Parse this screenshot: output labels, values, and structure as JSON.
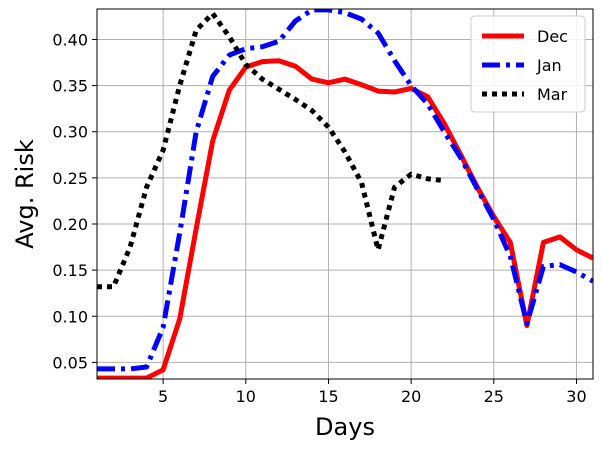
{
  "chart_data": {
    "type": "line",
    "title": "",
    "xlabel": "Days",
    "ylabel": "Avg. Risk",
    "xlim": [
      1,
      31
    ],
    "ylim": [
      0.032,
      0.433
    ],
    "xticks": [
      5,
      10,
      15,
      20,
      25,
      30
    ],
    "yticks": [
      0.05,
      0.1,
      0.15,
      0.2,
      0.25,
      0.3,
      0.35,
      0.4
    ],
    "xtick_labels": [
      "5",
      "10",
      "15",
      "20",
      "25",
      "30"
    ],
    "ytick_labels": [
      "0.05",
      "0.10",
      "0.15",
      "0.20",
      "0.25",
      "0.30",
      "0.35",
      "0.40"
    ],
    "grid": true,
    "legend_position": "top-right",
    "series": [
      {
        "name": "Dec",
        "color": "#ff0000",
        "style": "solid",
        "x": [
          1,
          2,
          3,
          4,
          5,
          6,
          7,
          8,
          9,
          10,
          11,
          12,
          13,
          14,
          15,
          16,
          17,
          18,
          19,
          20,
          21,
          22,
          23,
          24,
          25,
          26,
          27,
          28,
          29,
          30,
          31
        ],
        "y": [
          0.033,
          0.033,
          0.033,
          0.033,
          0.042,
          0.097,
          0.195,
          0.29,
          0.345,
          0.37,
          0.376,
          0.377,
          0.371,
          0.357,
          0.353,
          0.357,
          0.351,
          0.344,
          0.343,
          0.347,
          0.338,
          0.309,
          0.275,
          0.24,
          0.208,
          0.18,
          0.09,
          0.18,
          0.186,
          0.172,
          0.163
        ]
      },
      {
        "name": "Jan",
        "color": "#0000ff",
        "style": "dashdot",
        "x": [
          1,
          2,
          3,
          4,
          5,
          6,
          7,
          8,
          9,
          10,
          11,
          12,
          13,
          14,
          15,
          16,
          17,
          18,
          19,
          20,
          21,
          22,
          23,
          24,
          25,
          26,
          27,
          28,
          29,
          30,
          31
        ],
        "y": [
          0.043,
          0.043,
          0.043,
          0.045,
          0.088,
          0.19,
          0.3,
          0.36,
          0.383,
          0.39,
          0.392,
          0.398,
          0.42,
          0.432,
          0.432,
          0.429,
          0.422,
          0.407,
          0.377,
          0.35,
          0.33,
          0.3,
          0.272,
          0.238,
          0.205,
          0.165,
          0.092,
          0.154,
          0.156,
          0.148,
          0.138
        ]
      },
      {
        "name": "Mar",
        "color": "#000000",
        "style": "dotted",
        "x": [
          1,
          2,
          3,
          4,
          5,
          6,
          7,
          8,
          9,
          10,
          11,
          12,
          13,
          14,
          15,
          16,
          17,
          18,
          19,
          20,
          21,
          22
        ],
        "y": [
          0.132,
          0.132,
          0.175,
          0.24,
          0.28,
          0.35,
          0.41,
          0.428,
          0.403,
          0.373,
          0.357,
          0.346,
          0.335,
          0.323,
          0.305,
          0.278,
          0.245,
          0.172,
          0.24,
          0.254,
          0.249,
          0.247
        ]
      }
    ]
  }
}
